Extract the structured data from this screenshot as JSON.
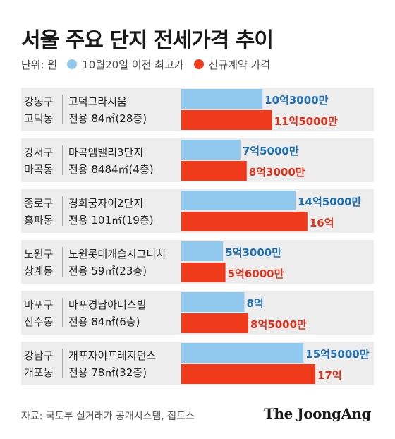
{
  "title": "서울 주요 단지 전세가격 추이",
  "legend": {
    "unit": "단위: 원",
    "items": [
      {
        "label": "10월20일 이전 최고가",
        "color": "#90c8ee"
      },
      {
        "label": "신규계약 가격",
        "color": "#ef3b1c"
      }
    ]
  },
  "colors": {
    "prev_bar": "#90c8ee",
    "new_bar": "#ef3b1c",
    "prev_label": "#1d6fb4",
    "new_label": "#e0301a",
    "row_bg": "#ededed"
  },
  "chart_data": {
    "type": "bar",
    "orientation": "horizontal",
    "unit": "억 원",
    "categories": [
      {
        "district": "강동구",
        "dong": "고덕동",
        "complex": "고덕그라시움",
        "spec": "전용 84㎡(28층)"
      },
      {
        "district": "강서구",
        "dong": "마곡동",
        "complex": "마곡엠밸리3단지",
        "spec": "전용 8484㎡(4층)"
      },
      {
        "district": "종로구",
        "dong": "홍파동",
        "complex": "경희궁자이2단지",
        "spec": "전용 101㎡(19층)"
      },
      {
        "district": "노원구",
        "dong": "상계동",
        "complex": "노원롯데캐슬시그니처",
        "spec": "전용 59㎡(23층)"
      },
      {
        "district": "마포구",
        "dong": "신수동",
        "complex": "마포경남아너스빌",
        "spec": "전용 84㎡(6층)"
      },
      {
        "district": "강남구",
        "dong": "개포동",
        "complex": "개포자이프레지던스",
        "spec": "전용 78㎡(32층)"
      }
    ],
    "series": [
      {
        "name": "10월20일 이전 최고가",
        "values": [
          10.3,
          7.5,
          14.5,
          5.3,
          8.0,
          15.5
        ],
        "labels": [
          "10억3000만",
          "7억5000만",
          "14억5000만",
          "5억3000만",
          "8억",
          "15억5000만"
        ]
      },
      {
        "name": "신규계약 가격",
        "values": [
          11.5,
          8.3,
          16.0,
          5.6,
          8.5,
          17.0
        ],
        "labels": [
          "11억5000만",
          "8억3000만",
          "16억",
          "5억6000만",
          "8억5000만",
          "17억"
        ]
      }
    ]
  },
  "footer": {
    "source": "자료: 국토부 실거래가 공개시스템, 집토스",
    "brand": "The JoongAng"
  }
}
